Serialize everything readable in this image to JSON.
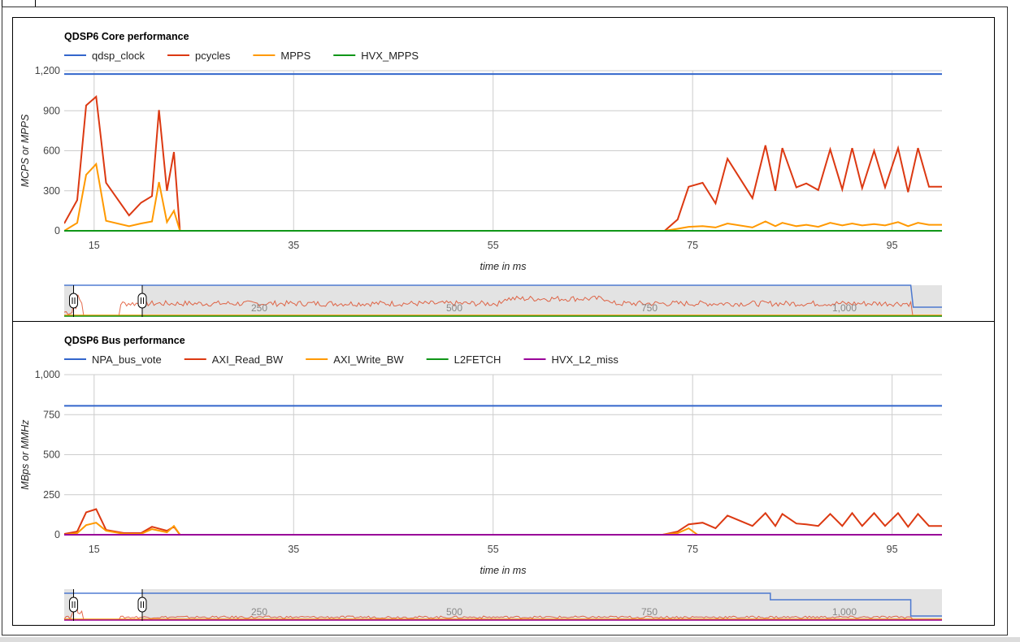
{
  "colors": {
    "blue": "#3366cc",
    "red": "#dc3912",
    "orange": "#ff9900",
    "green": "#109618",
    "purple": "#990099",
    "grid": "#cccccc",
    "navigator_fill": "#e3e3e3"
  },
  "chart_data": [
    {
      "type": "line",
      "title": "QDSP6 Core performance",
      "xlabel": "time in ms",
      "ylabel": "MCPS or MPPS",
      "xlim": [
        12,
        100
      ],
      "ylim": [
        0,
        1200
      ],
      "xticks": [
        15,
        35,
        55,
        75,
        95
      ],
      "yticks": [
        0,
        300,
        600,
        900,
        1200
      ],
      "ytick_labels": [
        "0",
        "300",
        "600",
        "900",
        "1,200"
      ],
      "legend_position": "top-left",
      "grid": true,
      "series": [
        {
          "name": "qdsp_clock",
          "color": "blue",
          "x": [
            12,
            100
          ],
          "y": [
            1175,
            1175
          ]
        },
        {
          "name": "pcycles",
          "color": "red",
          "x": [
            12,
            13.3,
            14.2,
            15.2,
            16.2,
            18.5,
            19.7,
            20.8,
            21.5,
            22.3,
            23,
            23.6,
            72.2,
            73.5,
            74.6,
            76,
            77.3,
            78.5,
            81,
            82.3,
            83.3,
            84,
            85.4,
            86.4,
            87.6,
            88.8,
            90,
            91,
            92,
            93.2,
            94.3,
            95.6,
            96.6,
            97.6,
            98.7,
            100
          ],
          "y": [
            55,
            230,
            940,
            1005,
            360,
            115,
            210,
            260,
            905,
            300,
            590,
            0,
            0,
            85,
            330,
            360,
            205,
            540,
            245,
            640,
            300,
            620,
            325,
            355,
            305,
            610,
            310,
            620,
            320,
            600,
            325,
            620,
            290,
            620,
            330,
            330
          ]
        },
        {
          "name": "MPPS",
          "color": "orange",
          "x": [
            12,
            13.3,
            14.2,
            15.2,
            16.2,
            18.5,
            19.7,
            20.8,
            21.5,
            22.3,
            23,
            23.6,
            72.2,
            73.5,
            74.6,
            76,
            77.3,
            78.5,
            81,
            82.3,
            83.3,
            84,
            85.4,
            86.4,
            87.6,
            88.8,
            90,
            91,
            92,
            93.2,
            94.3,
            95.6,
            96.6,
            97.6,
            98.7,
            100
          ],
          "y": [
            0,
            60,
            420,
            500,
            75,
            35,
            55,
            70,
            365,
            65,
            150,
            0,
            0,
            15,
            30,
            35,
            25,
            55,
            25,
            70,
            35,
            60,
            35,
            45,
            30,
            60,
            40,
            55,
            40,
            50,
            40,
            65,
            35,
            60,
            45,
            45
          ]
        },
        {
          "name": "HVX_MPPS",
          "color": "green",
          "x": [
            12,
            100
          ],
          "y": [
            0,
            0
          ]
        }
      ]
    },
    {
      "type": "line",
      "title": "QDSP6 Bus performance",
      "xlabel": "time in ms",
      "ylabel": "MBps or MMHz",
      "xlim": [
        12,
        100
      ],
      "ylim": [
        0,
        1000
      ],
      "xticks": [
        15,
        35,
        55,
        75,
        95
      ],
      "yticks": [
        0,
        250,
        500,
        750,
        1000
      ],
      "ytick_labels": [
        "0",
        "250",
        "500",
        "750",
        "1,000"
      ],
      "legend_position": "top-left",
      "grid": true,
      "series": [
        {
          "name": "NPA_bus_vote",
          "color": "blue",
          "x": [
            12,
            100
          ],
          "y": [
            805,
            805
          ]
        },
        {
          "name": "AXI_Read_BW",
          "color": "red",
          "x": [
            12,
            13.3,
            14.2,
            15.2,
            16.2,
            18,
            19.7,
            20.8,
            22.3,
            23,
            23.6,
            72,
            73.5,
            74.6,
            76,
            77.3,
            78.5,
            81,
            82.3,
            83.3,
            84,
            85.4,
            86.4,
            87.6,
            88.8,
            90,
            91,
            92,
            93.2,
            94.3,
            95.6,
            96.6,
            97.6,
            98.7,
            100
          ],
          "y": [
            5,
            20,
            140,
            160,
            30,
            10,
            10,
            50,
            25,
            50,
            0,
            0,
            20,
            65,
            75,
            40,
            120,
            55,
            135,
            55,
            130,
            70,
            65,
            55,
            130,
            55,
            135,
            55,
            135,
            55,
            135,
            50,
            130,
            55,
            55
          ]
        },
        {
          "name": "AXI_Write_BW",
          "color": "orange",
          "x": [
            12,
            13.3,
            14.2,
            15.2,
            16.2,
            18,
            19.7,
            20.8,
            22.3,
            23,
            23.6,
            72,
            73.5,
            74.6,
            75.5,
            100
          ],
          "y": [
            0,
            10,
            60,
            75,
            25,
            5,
            5,
            35,
            15,
            55,
            0,
            0,
            10,
            40,
            0,
            0
          ]
        },
        {
          "name": "L2FETCH",
          "color": "green",
          "x": [
            12,
            100
          ],
          "y": [
            0,
            0
          ]
        },
        {
          "name": "HVX_L2_miss",
          "color": "purple",
          "x": [
            12,
            100
          ],
          "y": [
            0,
            0
          ]
        }
      ]
    }
  ],
  "navigators": [
    {
      "ticks": [
        "250",
        "500",
        "750",
        "1,000"
      ],
      "tick_values": [
        250,
        500,
        750,
        1000
      ],
      "range": [
        0,
        1125
      ],
      "selection": [
        12,
        100
      ],
      "clock_drop_at": 1085
    },
    {
      "ticks": [
        "250",
        "500",
        "750",
        "1,000"
      ],
      "tick_values": [
        250,
        500,
        750,
        1000
      ],
      "range": [
        0,
        1125
      ],
      "selection": [
        12,
        100
      ],
      "vote_drop_at": 905,
      "clock_drop_at": 1085
    }
  ]
}
